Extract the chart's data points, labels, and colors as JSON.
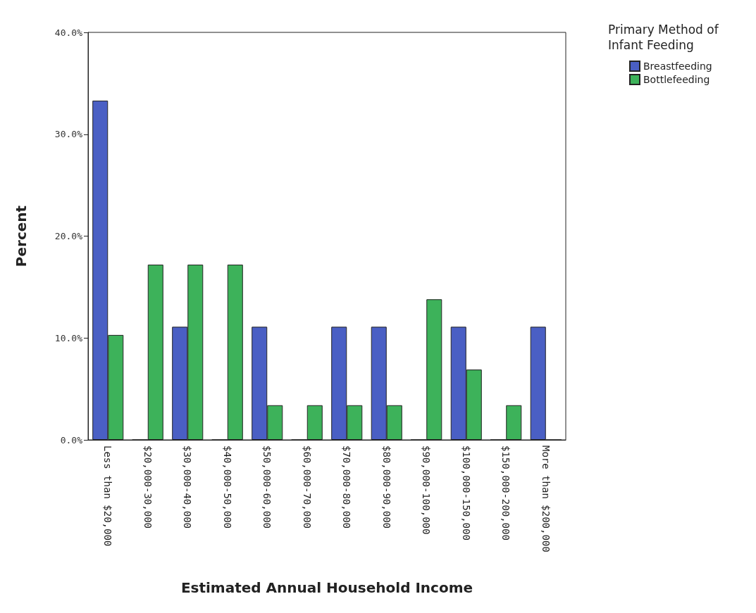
{
  "chart_data": {
    "type": "bar",
    "xlabel": "Estimated Annual Household Income",
    "ylabel": "Percent",
    "legend_title": "Primary Method of Infant Feeding",
    "categories": [
      "Less than $20,000",
      "$20,000-30,000",
      "$30,000-40,000",
      "$40,000-50,000",
      "$50,000-60,000",
      "$60,000-70,000",
      "$70,000-80,000",
      "$80,000-90,000",
      "$90,000-100,000",
      "$100,000-150,000",
      "$150,000-200,000",
      "More than $200,000"
    ],
    "series": [
      {
        "name": "Breastfeeding",
        "color": "#4a5fc4",
        "values": [
          33.3,
          0,
          11.1,
          0,
          11.1,
          0,
          11.1,
          11.1,
          0,
          11.1,
          0,
          11.1
        ]
      },
      {
        "name": "Bottlefeeding",
        "color": "#3db25a",
        "values": [
          10.3,
          17.2,
          17.2,
          17.2,
          3.4,
          3.4,
          3.4,
          3.4,
          13.8,
          6.9,
          3.4,
          0
        ]
      }
    ],
    "ylim": [
      0,
      40
    ],
    "yticks": [
      {
        "value": 0,
        "label": "0.0%"
      },
      {
        "value": 10,
        "label": "10.0%"
      },
      {
        "value": 20,
        "label": "20.0%"
      },
      {
        "value": 30,
        "label": "30.0%"
      },
      {
        "value": 40,
        "label": "40.0%"
      }
    ],
    "grid": false,
    "legend": "top right"
  }
}
